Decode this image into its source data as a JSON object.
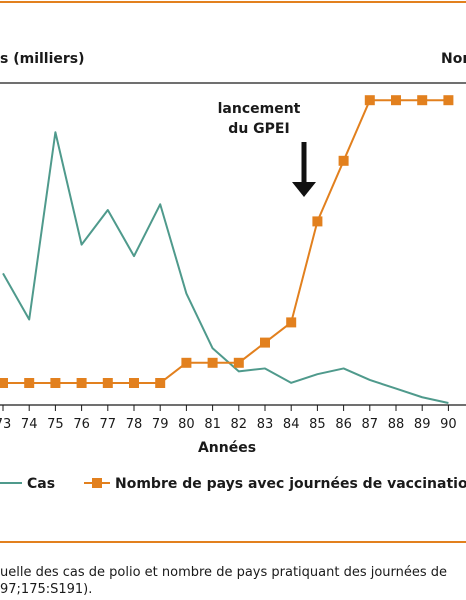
{
  "colors": {
    "cas": "#4f9a8c",
    "pays": "#e2801e",
    "rule": "#e2801e"
  },
  "chart_data": {
    "type": "line",
    "xlabel": "Années",
    "y_left_label": "s (milliers)",
    "y_right_label": "Nom",
    "annotation": {
      "line1": "lancement",
      "line2": "du GPEI",
      "x": 84.5
    },
    "x": [
      "73",
      "74",
      "75",
      "76",
      "77",
      "78",
      "79",
      "80",
      "81",
      "82",
      "83",
      "84",
      "85",
      "86",
      "87",
      "88",
      "89",
      "90"
    ],
    "series": [
      {
        "name": "Cas",
        "color": "#4f9a8c",
        "markers": false,
        "values": [
          45,
          29,
          94,
          55,
          67,
          51,
          69,
          38,
          19,
          11,
          12,
          7,
          10,
          12,
          8,
          5,
          2,
          0
        ]
      },
      {
        "name": "Nombre de pays avec journées de vaccination",
        "color": "#e2801e",
        "markers": true,
        "values": [
          0,
          0,
          0,
          0,
          0,
          0,
          0,
          1,
          1,
          1,
          2,
          3,
          8,
          11,
          14,
          14,
          14,
          14
        ]
      }
    ]
  },
  "caption": {
    "line1": "uelle des cas de polio et nombre de pays pratiquant des journées de",
    "line2": "97;175:S191)."
  }
}
